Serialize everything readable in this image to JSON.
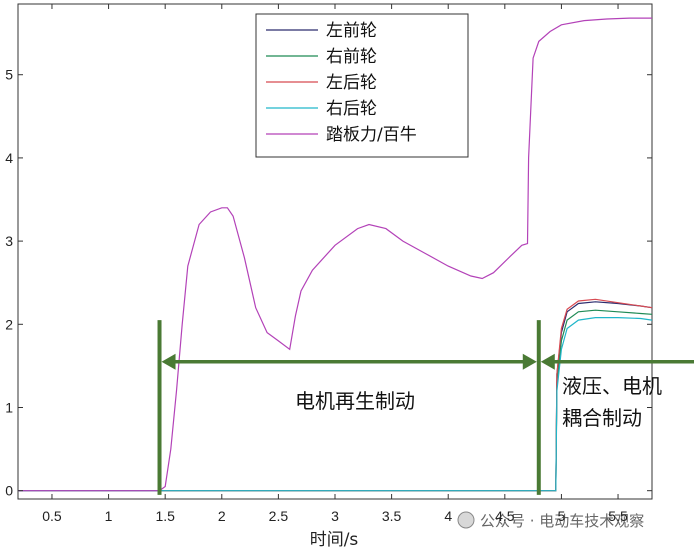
{
  "chart_data": {
    "type": "line",
    "title": "",
    "xlabel": "时间/s",
    "ylabel": "",
    "xlim": [
      0.2,
      5.8
    ],
    "ylim": [
      -0.1,
      5.85
    ],
    "xticks": [
      0.5,
      1,
      1.5,
      2,
      2.5,
      3,
      3.5,
      4,
      4.5,
      5,
      5.5
    ],
    "xtick_labels": [
      "0.5",
      "1",
      "1.5",
      "2",
      "2.5",
      "3",
      "3.5",
      "4",
      "4.5",
      "5",
      "5.5"
    ],
    "yticks": [
      0,
      1,
      2,
      3,
      4,
      5
    ],
    "ytick_labels": [
      "0",
      "1",
      "2",
      "3",
      "4",
      "5"
    ],
    "grid": false,
    "legend_position": "top-center",
    "series": [
      {
        "name": "左前轮",
        "color": "#2c2c6e",
        "x": [
          0.2,
          4.95,
          4.96,
          5.0,
          5.05,
          5.15,
          5.3,
          5.5,
          5.7,
          5.8
        ],
        "y": [
          0,
          0,
          1.4,
          1.9,
          2.15,
          2.25,
          2.27,
          2.25,
          2.22,
          2.2
        ]
      },
      {
        "name": "右前轮",
        "color": "#1f8a55",
        "x": [
          0.2,
          4.95,
          4.96,
          5.0,
          5.05,
          5.15,
          5.3,
          5.5,
          5.7,
          5.8
        ],
        "y": [
          0,
          0,
          1.3,
          1.8,
          2.05,
          2.15,
          2.17,
          2.15,
          2.13,
          2.12
        ]
      },
      {
        "name": "左后轮",
        "color": "#d84a52",
        "x": [
          0.2,
          4.95,
          4.96,
          5.0,
          5.05,
          5.15,
          5.3,
          5.5,
          5.7,
          5.8
        ],
        "y": [
          0,
          0,
          1.4,
          1.95,
          2.18,
          2.28,
          2.3,
          2.26,
          2.22,
          2.2
        ]
      },
      {
        "name": "右后轮",
        "color": "#20b6c9",
        "x": [
          0.2,
          4.95,
          4.96,
          5.0,
          5.05,
          5.15,
          5.3,
          5.5,
          5.7,
          5.8
        ],
        "y": [
          0,
          0,
          1.2,
          1.7,
          1.95,
          2.05,
          2.08,
          2.08,
          2.07,
          2.05
        ]
      },
      {
        "name": "踏板力/百牛",
        "color": "#b342b8",
        "x": [
          0.2,
          1.45,
          1.5,
          1.55,
          1.6,
          1.65,
          1.7,
          1.8,
          1.9,
          2.0,
          2.05,
          2.1,
          2.2,
          2.3,
          2.4,
          2.5,
          2.6,
          2.65,
          2.7,
          2.8,
          3.0,
          3.2,
          3.3,
          3.45,
          3.6,
          3.8,
          4.0,
          4.2,
          4.3,
          4.4,
          4.55,
          4.65,
          4.7,
          4.71,
          4.75,
          4.8,
          4.9,
          5.0,
          5.2,
          5.4,
          5.6,
          5.8
        ],
        "y": [
          0,
          0,
          0.05,
          0.5,
          1.2,
          2.0,
          2.7,
          3.2,
          3.35,
          3.4,
          3.4,
          3.3,
          2.8,
          2.2,
          1.9,
          1.8,
          1.7,
          2.1,
          2.4,
          2.65,
          2.95,
          3.15,
          3.2,
          3.15,
          3.0,
          2.85,
          2.7,
          2.58,
          2.55,
          2.62,
          2.82,
          2.95,
          2.97,
          4.0,
          5.2,
          5.4,
          5.52,
          5.6,
          5.65,
          5.67,
          5.68,
          5.68
        ]
      }
    ],
    "annotations": {
      "regen_label": "电机再生制动",
      "hydraulic_label_line1": "液压、电机",
      "hydraulic_label_line2": "耦合制动"
    },
    "marker_lines_x": [
      1.45,
      4.8
    ],
    "annotation_y": 1.55,
    "annotation_color": "#4a7a34"
  },
  "watermark": "公众号 · 电动车技术观察"
}
